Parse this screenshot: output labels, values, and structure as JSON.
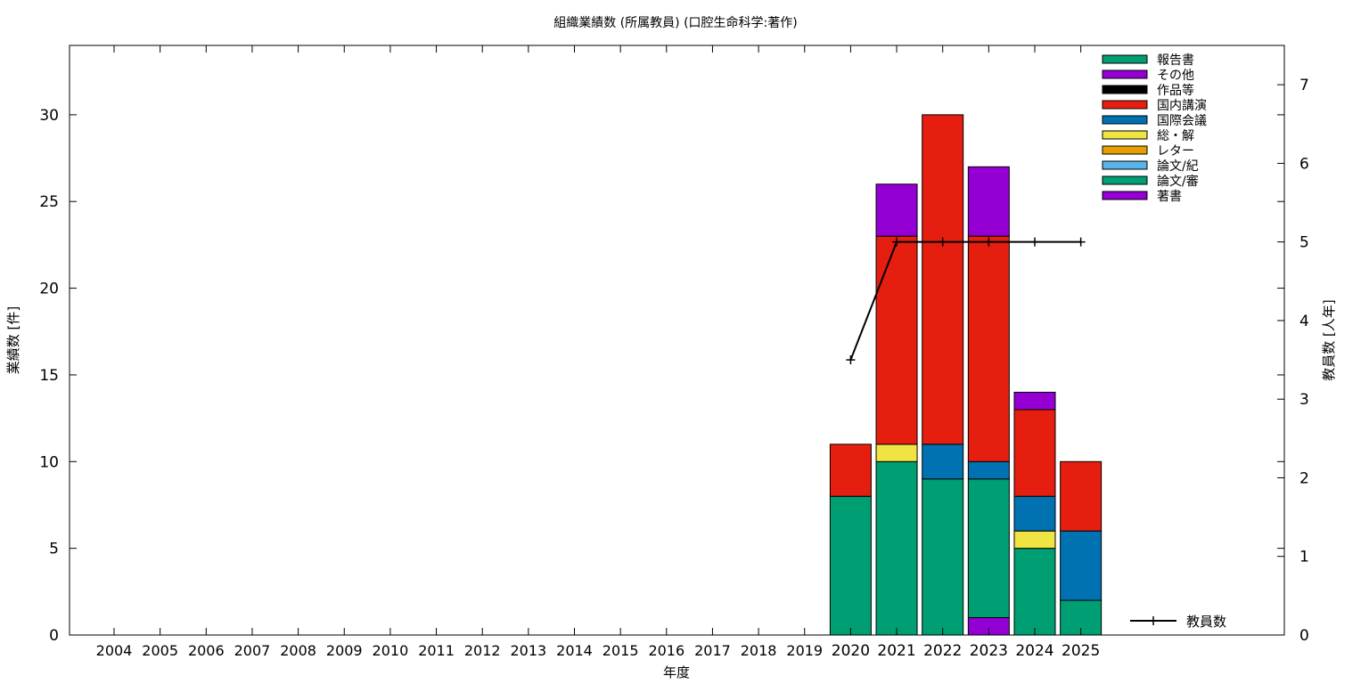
{
  "chart_data": {
    "type": "bar",
    "stacked": true,
    "title": "組織業績数 (所属教員) (口腔生命科学:著作)",
    "xlabel": "年度",
    "ylabel": "業績数 [件]",
    "y2label": "教員数 [人年]",
    "categories": [
      "2004",
      "2005",
      "2006",
      "2007",
      "2008",
      "2009",
      "2010",
      "2011",
      "2012",
      "2013",
      "2014",
      "2015",
      "2016",
      "2017",
      "2018",
      "2019",
      "2020",
      "2021",
      "2022",
      "2023",
      "2024",
      "2025"
    ],
    "ylim": [
      0,
      34
    ],
    "yticks": [
      0,
      5,
      10,
      15,
      20,
      25,
      30
    ],
    "y2lim": [
      0,
      7.5
    ],
    "y2ticks": [
      0,
      1,
      2,
      3,
      4,
      5,
      6,
      7
    ],
    "grid": false,
    "legend_position": "top-right",
    "series": [
      {
        "name": "著書",
        "color": "#9400d3",
        "values": [
          0,
          0,
          0,
          0,
          0,
          0,
          0,
          0,
          0,
          0,
          0,
          0,
          0,
          0,
          0,
          0,
          0,
          0,
          0,
          1,
          0,
          0
        ]
      },
      {
        "name": "論文/審",
        "color": "#009e73",
        "values": [
          0,
          0,
          0,
          0,
          0,
          0,
          0,
          0,
          0,
          0,
          0,
          0,
          0,
          0,
          0,
          0,
          8,
          10,
          9,
          8,
          5,
          2
        ]
      },
      {
        "name": "論文/紀",
        "color": "#56b4e9",
        "values": [
          0,
          0,
          0,
          0,
          0,
          0,
          0,
          0,
          0,
          0,
          0,
          0,
          0,
          0,
          0,
          0,
          0,
          0,
          0,
          0,
          0,
          0
        ]
      },
      {
        "name": "レター",
        "color": "#e69f00",
        "values": [
          0,
          0,
          0,
          0,
          0,
          0,
          0,
          0,
          0,
          0,
          0,
          0,
          0,
          0,
          0,
          0,
          0,
          0,
          0,
          0,
          0,
          0
        ]
      },
      {
        "name": "総・解",
        "color": "#f0e442",
        "values": [
          0,
          0,
          0,
          0,
          0,
          0,
          0,
          0,
          0,
          0,
          0,
          0,
          0,
          0,
          0,
          0,
          0,
          1,
          0,
          0,
          1,
          0
        ]
      },
      {
        "name": "国際会議",
        "color": "#0072b2",
        "values": [
          0,
          0,
          0,
          0,
          0,
          0,
          0,
          0,
          0,
          0,
          0,
          0,
          0,
          0,
          0,
          0,
          0,
          0,
          2,
          1,
          2,
          4
        ]
      },
      {
        "name": "国内講演",
        "color": "#e51e10",
        "values": [
          0,
          0,
          0,
          0,
          0,
          0,
          0,
          0,
          0,
          0,
          0,
          0,
          0,
          0,
          0,
          0,
          3,
          12,
          19,
          13,
          5,
          4
        ]
      },
      {
        "name": "作品等",
        "color": "#000000",
        "values": [
          0,
          0,
          0,
          0,
          0,
          0,
          0,
          0,
          0,
          0,
          0,
          0,
          0,
          0,
          0,
          0,
          0,
          0,
          0,
          0,
          0,
          0
        ]
      },
      {
        "name": "その他",
        "color": "#9400d3",
        "values": [
          0,
          0,
          0,
          0,
          0,
          0,
          0,
          0,
          0,
          0,
          0,
          0,
          0,
          0,
          0,
          0,
          0,
          3,
          0,
          4,
          1,
          0
        ]
      },
      {
        "name": "報告書",
        "color": "#009e73",
        "values": [
          0,
          0,
          0,
          0,
          0,
          0,
          0,
          0,
          0,
          0,
          0,
          0,
          0,
          0,
          0,
          0,
          0,
          0,
          0,
          0,
          0,
          0
        ]
      }
    ],
    "line_series": {
      "name": "教員数",
      "color": "#000000",
      "axis": "y2",
      "points": [
        {
          "x": "2020",
          "y": 3.5
        },
        {
          "x": "2021",
          "y": 5
        },
        {
          "x": "2022",
          "y": 5
        },
        {
          "x": "2023",
          "y": 5
        },
        {
          "x": "2024",
          "y": 5
        },
        {
          "x": "2025",
          "y": 5
        }
      ]
    },
    "highlighted_categories": [
      "2020",
      "2021",
      "2022",
      "2023",
      "2024",
      "2025"
    ]
  }
}
